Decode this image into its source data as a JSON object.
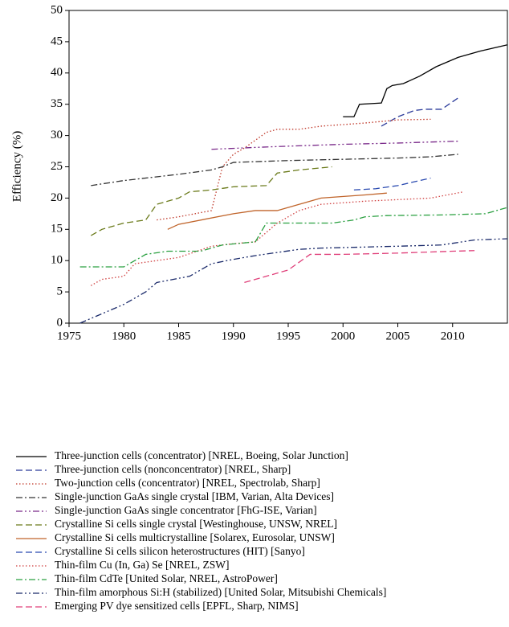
{
  "chart_data": {
    "type": "line",
    "ylabel": "Efficiency (%)",
    "xlim": [
      1975,
      2015
    ],
    "ylim": [
      0,
      50
    ],
    "xticks": [
      1975,
      1980,
      1985,
      1990,
      1995,
      2000,
      2005,
      2010
    ],
    "yticks": [
      0,
      5,
      10,
      15,
      20,
      25,
      30,
      35,
      40,
      45,
      50
    ],
    "legend": "bottom",
    "series": [
      {
        "name": "Three-junction cells (concentrator) [NREL, Boeing, Solar Junction]",
        "color": "#000000",
        "style": "solid",
        "x": [
          2000,
          2001,
          2001.5,
          2003.5,
          2004,
          2004.5,
          2005.5,
          2007,
          2008.5,
          2010.5,
          2012.5,
          2015
        ],
        "values": [
          33,
          33,
          35,
          35.2,
          37.5,
          38,
          38.3,
          39.5,
          41,
          42.5,
          43.5,
          44.5
        ]
      },
      {
        "name": "Three-junction cells (nonconcentrator) [NREL, Sharp]",
        "color": "#2a3a9a",
        "style": "dashed",
        "x": [
          2003.5,
          2004,
          2005,
          2006.5,
          2007.5,
          2009,
          2010.5
        ],
        "values": [
          31.5,
          32,
          33,
          34,
          34.2,
          34.2,
          36
        ]
      },
      {
        "name": "Two-junction cells (concentrator) [NREL, Spectrolab, Sharp]",
        "color": "#c0392b",
        "style": "dotted",
        "x": [
          1983,
          1985,
          1988,
          1989,
          1990,
          1991,
          1993,
          1994,
          1996,
          1998,
          2002,
          2005,
          2008
        ],
        "values": [
          16.5,
          17,
          18,
          25,
          27,
          28,
          30.5,
          31,
          31,
          31.5,
          32,
          32.5,
          32.6
        ]
      },
      {
        "name": "Single-junction GaAs single crystal [IBM, Varian, Alta Devices]",
        "color": "#333333",
        "style": "dashdot",
        "x": [
          1977,
          1980,
          1985,
          1988,
          1989,
          1990,
          1995,
          2000,
          2005,
          2008,
          2010.5
        ],
        "values": [
          22,
          22.8,
          23.8,
          24.5,
          25,
          25.7,
          26,
          26.2,
          26.4,
          26.6,
          27
        ]
      },
      {
        "name": "Single-junction GaAs single concentrator [FhG-ISE, Varian]",
        "color": "#7a2a8a",
        "style": "dashdotdot",
        "x": [
          1988,
          1992,
          1995,
          2000,
          2005,
          2010.5
        ],
        "values": [
          27.8,
          28.1,
          28.3,
          28.6,
          28.8,
          29.1
        ]
      },
      {
        "name": "Crystalline Si cells single crystal [Westinghouse, UNSW, NREL]",
        "color": "#6a7a1a",
        "style": "dashed",
        "x": [
          1977,
          1978,
          1980,
          1982,
          1983,
          1985,
          1986,
          1988,
          1990,
          1993,
          1994,
          1996,
          1999
        ],
        "values": [
          14,
          15,
          16,
          16.5,
          19,
          20,
          21,
          21.3,
          21.8,
          22,
          24,
          24.5,
          25
        ]
      },
      {
        "name": "Crystalline Si cells multicrystalline [Solarex, Eurosolar, UNSW]",
        "color": "#c0642a",
        "style": "solid",
        "x": [
          1984,
          1985,
          1990,
          1992,
          1994,
          1998,
          2002,
          2004
        ],
        "values": [
          15,
          15.8,
          17.5,
          18,
          18,
          20,
          20.5,
          20.8
        ]
      },
      {
        "name": "Crystalline Si cells silicon heterostructures (HIT) [Sanyo]",
        "color": "#2a4ab0",
        "style": "dashed",
        "x": [
          2001,
          2003,
          2005,
          2008
        ],
        "values": [
          21.3,
          21.5,
          22,
          23.2
        ]
      },
      {
        "name": "Thin-film Cu (In, Ga) Se [NREL, ZSW]",
        "color": "#d04040",
        "style": "dotted",
        "x": [
          1977,
          1978,
          1980,
          1981,
          1983,
          1985,
          1988,
          1990,
          1992,
          1994,
          1996,
          1998,
          2002,
          2008,
          2011
        ],
        "values": [
          6,
          7,
          7.5,
          9.5,
          10,
          10.5,
          12.3,
          12.7,
          13,
          16,
          18,
          19,
          19.5,
          20,
          21
        ]
      },
      {
        "name": "Thin-film CdTe [United Solar, NREL, AstroPower]",
        "color": "#2aa040",
        "style": "dashdot",
        "x": [
          1976,
          1980,
          1982,
          1984,
          1987,
          1989,
          1992,
          1993,
          1996,
          1999,
          2001,
          2002,
          2004,
          2009,
          2011,
          2013,
          2015
        ],
        "values": [
          9,
          9,
          11,
          11.5,
          11.5,
          12.5,
          13,
          16,
          16,
          16,
          16.5,
          17,
          17.2,
          17.3,
          17.4,
          17.5,
          18.5
        ]
      },
      {
        "name": "Thin-film amorphous Si:H (stabilized) [United Solar, Mitsubishi Chemicals]",
        "color": "#1a2a6a",
        "style": "dashdotdot",
        "x": [
          1976,
          1978,
          1980,
          1982,
          1983,
          1986,
          1988,
          1990,
          1992,
          1996,
          1998,
          2005,
          2009,
          2012,
          2015
        ],
        "values": [
          0,
          1.5,
          3,
          5,
          6.5,
          7.5,
          9.5,
          10.2,
          10.8,
          11.8,
          12,
          12.3,
          12.5,
          13.3,
          13.5
        ]
      },
      {
        "name": "Emerging PV dye sensitized cells [EPFL, Sharp, NIMS]",
        "color": "#e0407a",
        "style": "dashed",
        "x": [
          1991,
          1993,
          1995,
          1997,
          2000,
          2005,
          2010,
          2012
        ],
        "values": [
          6.5,
          7.5,
          8.5,
          11,
          11,
          11.2,
          11.5,
          11.6
        ]
      }
    ]
  }
}
